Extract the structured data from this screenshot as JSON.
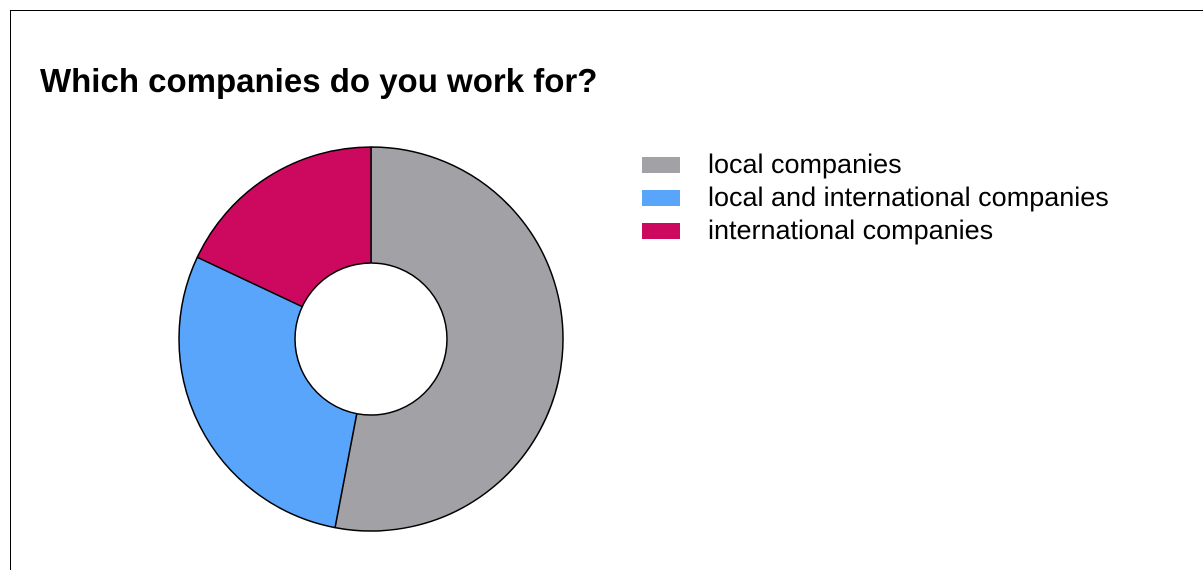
{
  "chart_data": {
    "type": "pie",
    "title": "Which companies do you work for?",
    "donut": true,
    "legend_position": "right",
    "categories": [
      "local companies",
      "local and international companies",
      "international companies"
    ],
    "values": [
      53,
      29,
      18
    ],
    "colors": [
      "#a2a1a6",
      "#58a5fb",
      "#cc085f"
    ]
  }
}
